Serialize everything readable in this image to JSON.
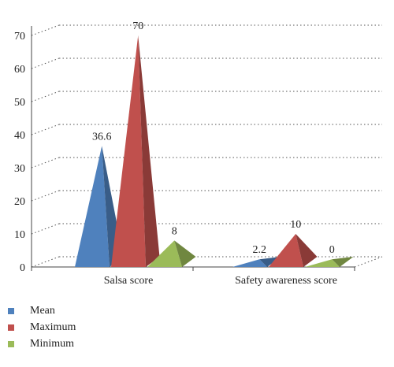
{
  "chart_data": {
    "type": "bar",
    "style": "3d-pyramid",
    "categories": [
      "Salsa score",
      "Safety awareness score"
    ],
    "series": [
      {
        "name": "Mean",
        "color": "#4f81bd",
        "values": [
          36.6,
          2.2
        ],
        "labels": [
          "36.6",
          "2.2"
        ]
      },
      {
        "name": "Maximum",
        "color": "#c0504d",
        "values": [
          70,
          10
        ],
        "labels": [
          "70",
          "10"
        ]
      },
      {
        "name": "Minimum",
        "color": "#9bbb59",
        "values": [
          8,
          0
        ],
        "labels": [
          "8",
          "0"
        ]
      }
    ],
    "ylim": [
      0,
      70
    ],
    "yticks": [
      "0",
      "10",
      "20",
      "30",
      "40",
      "50",
      "60",
      "70"
    ],
    "grid": true,
    "legend_position": "bottom-left"
  }
}
